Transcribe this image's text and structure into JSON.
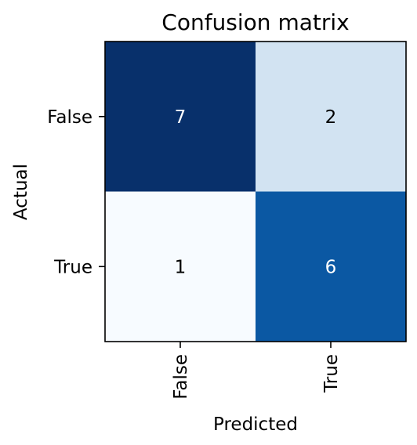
{
  "chart_data": {
    "type": "heatmap",
    "title": "Confusion matrix",
    "xlabel": "Predicted",
    "ylabel": "Actual",
    "x_categories": [
      "False",
      "True"
    ],
    "y_categories": [
      "False",
      "True"
    ],
    "values": [
      [
        7,
        2
      ],
      [
        1,
        6
      ]
    ],
    "colormap": "Blues",
    "colors": {
      "high": "#08306b",
      "low": "#f7fbff",
      "mid_high": "#0b59a4",
      "mid_low": "#d4e4f3",
      "light_text": "#ffffff",
      "dark_text": "#000000"
    }
  }
}
